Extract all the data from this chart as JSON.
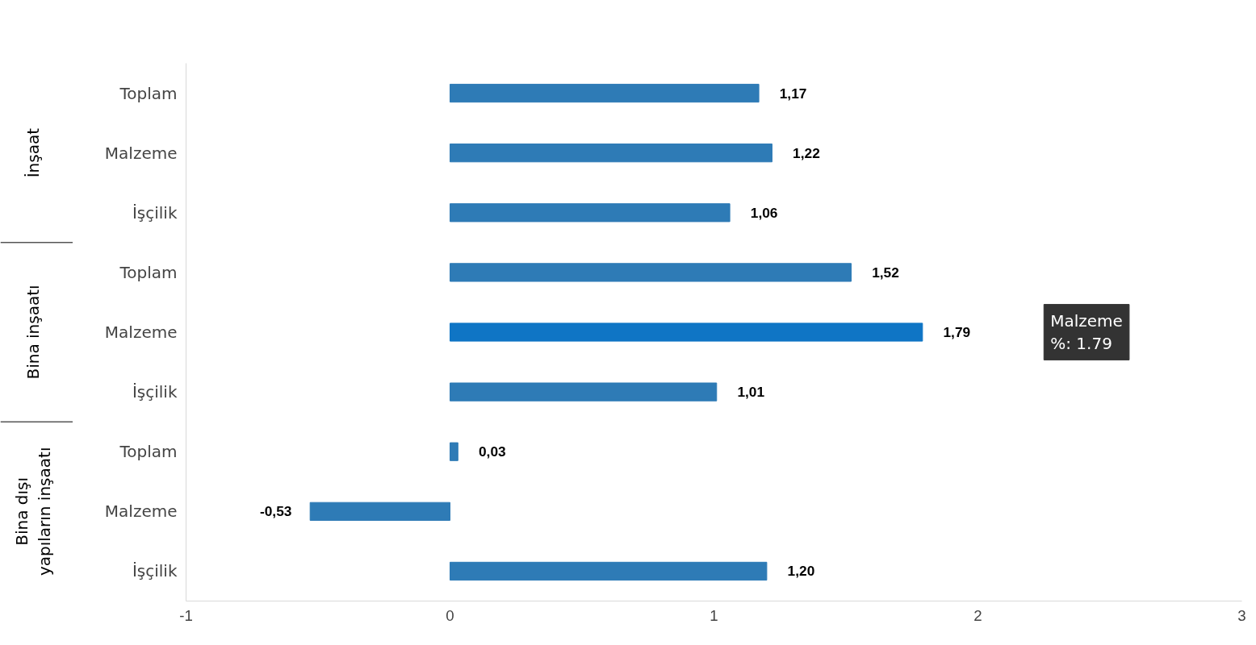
{
  "chart_data": {
    "type": "bar",
    "orientation": "horizontal",
    "categories": [
      "Toplam",
      "Malzeme",
      "İşçilik",
      "Toplam",
      "Malzeme",
      "İşçilik",
      "Toplam",
      "Malzeme",
      "İşçilik"
    ],
    "values": [
      1.17,
      1.22,
      1.06,
      1.52,
      1.79,
      1.01,
      0.03,
      -0.53,
      1.2
    ],
    "value_labels": [
      "1,17",
      "1,22",
      "1,06",
      "1,52",
      "1,79",
      "1,01",
      "0,03",
      "-0,53",
      "1,20"
    ],
    "colors": [
      "#2e7bb6",
      "#2e7bb6",
      "#2e7bb6",
      "#2e7bb6",
      "#0f75c5",
      "#2e7bb6",
      "#2e7bb6",
      "#2e7bb6",
      "#2e7bb6"
    ],
    "xlim": [
      -1,
      3
    ],
    "xticks": [
      -1,
      0,
      1,
      2,
      3
    ],
    "grid": false,
    "annotations": [
      "İnşaat",
      "Bina inşaatı",
      "Bina dışı\nyapıların inşaatı",
      "Malzeme\n%: 1.79"
    ]
  }
}
